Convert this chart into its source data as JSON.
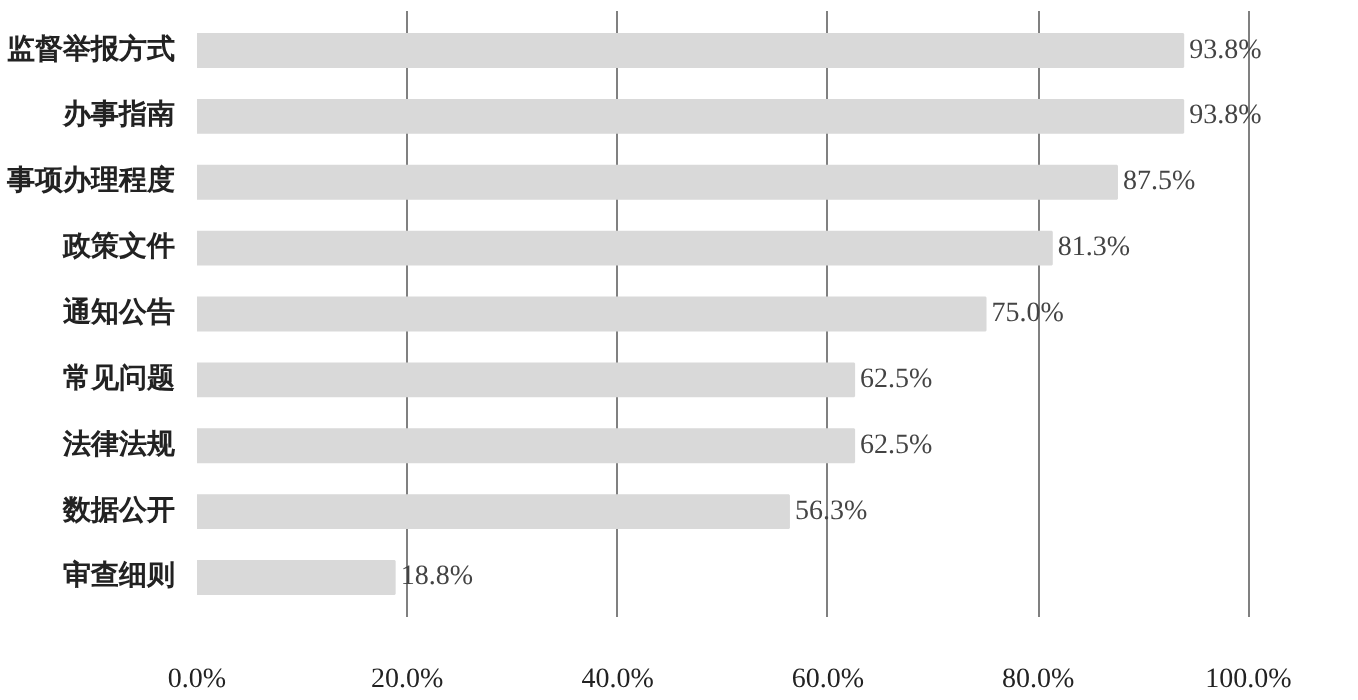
{
  "chart_data": {
    "type": "bar",
    "orientation": "horizontal",
    "categories": [
      "监督举报方式",
      "办事指南",
      "事项办理程度",
      "政策文件",
      "通知公告",
      "常见问题",
      "法律法规",
      "数据公开",
      "审查细则"
    ],
    "values": [
      93.8,
      93.8,
      87.5,
      81.3,
      75.0,
      62.5,
      62.5,
      56.3,
      18.8
    ],
    "value_labels": [
      "93.8%",
      "93.8%",
      "87.5%",
      "81.3%",
      "75.0%",
      "62.5%",
      "62.5%",
      "56.3%",
      "18.8%"
    ],
    "color": "#d9d9d9",
    "xlim": [
      0,
      100
    ],
    "xticks": [
      {
        "value": 0,
        "label": "0.0%"
      },
      {
        "value": 20,
        "label": "20.0%"
      },
      {
        "value": 40,
        "label": "40.0%"
      },
      {
        "value": 60,
        "label": "60.0%"
      },
      {
        "value": 80,
        "label": "80.0%"
      },
      {
        "value": 100,
        "label": "100.0%"
      }
    ],
    "grid": "x"
  }
}
